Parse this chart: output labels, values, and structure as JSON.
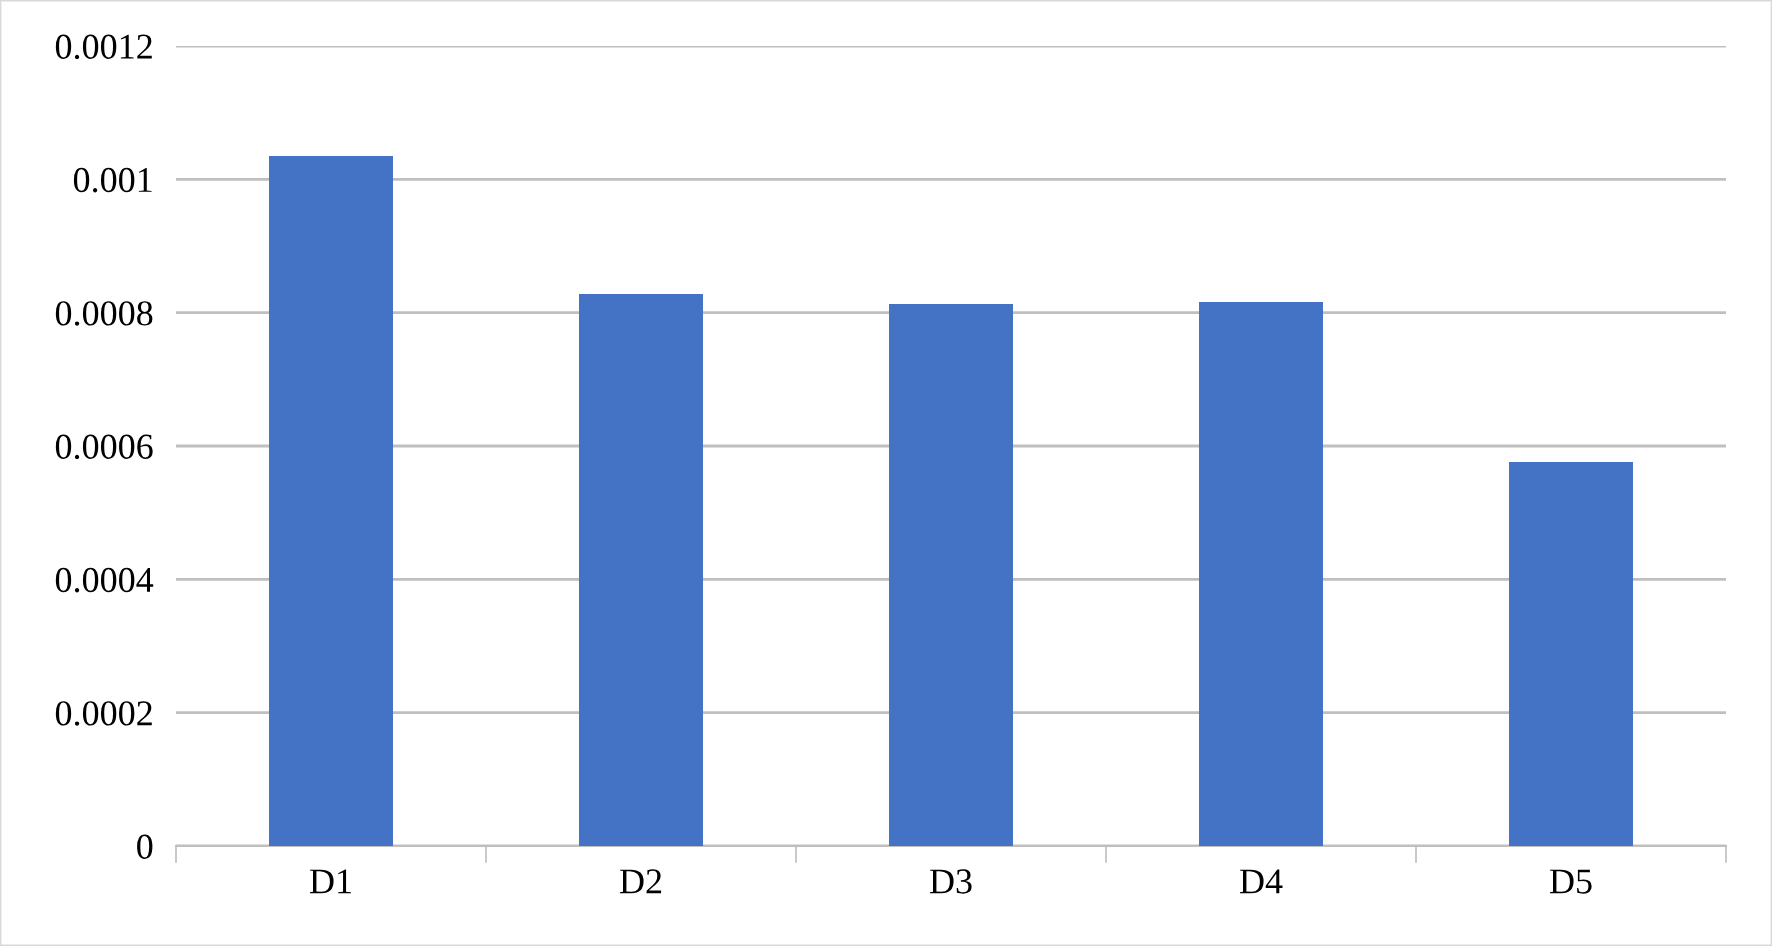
{
  "chart_data": {
    "type": "bar",
    "categories": [
      "D1",
      "D2",
      "D3",
      "D4",
      "D5"
    ],
    "values": [
      0.001035,
      0.000828,
      0.000813,
      0.000816,
      0.000576
    ],
    "color": "#4472c4",
    "ylim": [
      0,
      0.0012
    ],
    "yticks": [
      0,
      0.0002,
      0.0004,
      0.0006,
      0.0008,
      0.001,
      0.0012
    ],
    "grid": "y"
  }
}
